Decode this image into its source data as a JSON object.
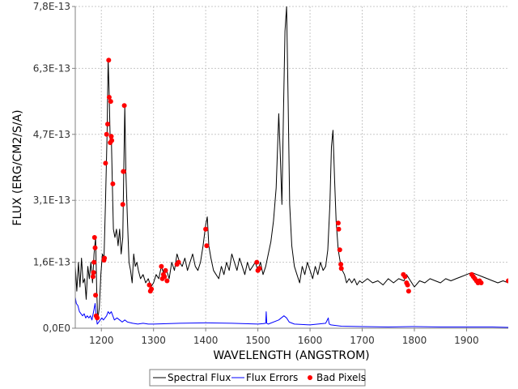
{
  "chart_data": {
    "type": "line",
    "xlabel": "WAVELENGTH (ANGSTROM)",
    "ylabel": "FLUX (ERG/CM2/S/A)",
    "xlim": [
      1150,
      1980
    ],
    "ylim": [
      0,
      7.8e-13
    ],
    "x_ticks": [
      1200,
      1300,
      1400,
      1500,
      1600,
      1700,
      1800,
      1900
    ],
    "x_tick_labels": [
      "1200",
      "1300",
      "1400",
      "1500",
      "1600",
      "1700",
      "1800",
      "1900"
    ],
    "y_ticks": [
      0,
      1.6e-13,
      3.1e-13,
      4.7e-13,
      6.3e-13,
      7.8e-13
    ],
    "y_tick_labels": [
      "0,0E0",
      "1,6E-13",
      "3,1E-13",
      "4,7E-13",
      "6,3E-13",
      "7,8E-13"
    ],
    "grid": true,
    "legend_position": "bottom",
    "colors": {
      "flux": "#000000",
      "errors": "#0000ff",
      "bad": "#ff0000",
      "grid": "#c8c8c8"
    },
    "series": [
      {
        "name": "Spectral Flux",
        "style": "line",
        "x": [
          1150,
          1153,
          1156,
          1159,
          1162,
          1165,
          1168,
          1171,
          1174,
          1177,
          1180,
          1183,
          1186,
          1189,
          1191,
          1193,
          1196,
          1199,
          1202,
          1205,
          1208,
          1211,
          1213,
          1215,
          1217,
          1219,
          1221,
          1223,
          1226,
          1229,
          1232,
          1235,
          1238,
          1241,
          1243,
          1245,
          1247,
          1250,
          1253,
          1256,
          1259,
          1262,
          1265,
          1268,
          1271,
          1275,
          1280,
          1285,
          1290,
          1295,
          1300,
          1305,
          1310,
          1315,
          1320,
          1325,
          1330,
          1335,
          1340,
          1345,
          1350,
          1355,
          1360,
          1365,
          1370,
          1375,
          1380,
          1385,
          1390,
          1395,
          1400,
          1403,
          1406,
          1410,
          1415,
          1420,
          1425,
          1430,
          1435,
          1440,
          1445,
          1450,
          1455,
          1460,
          1465,
          1470,
          1475,
          1480,
          1485,
          1490,
          1495,
          1500,
          1505,
          1510,
          1515,
          1520,
          1525,
          1530,
          1535,
          1540,
          1543,
          1546,
          1549,
          1552,
          1555,
          1558,
          1561,
          1565,
          1570,
          1575,
          1580,
          1585,
          1590,
          1595,
          1600,
          1605,
          1610,
          1615,
          1620,
          1625,
          1630,
          1634,
          1638,
          1641,
          1644,
          1647,
          1650,
          1654,
          1658,
          1662,
          1666,
          1670,
          1675,
          1680,
          1685,
          1690,
          1695,
          1700,
          1710,
          1720,
          1730,
          1740,
          1750,
          1760,
          1770,
          1780,
          1785,
          1790,
          1800,
          1810,
          1820,
          1830,
          1840,
          1850,
          1860,
          1870,
          1880,
          1890,
          1900,
          1910,
          1920,
          1930,
          1940,
          1950,
          1960,
          1970,
          1980
        ],
        "y": [
          1.5e-13,
          9e-14,
          1.6e-13,
          1e-13,
          1.7e-13,
          1.1e-13,
          1.2e-13,
          7e-14,
          1.5e-13,
          1.2e-13,
          1.6e-13,
          1.1e-13,
          1.8e-13,
          2.2e-13,
          1e-13,
          2e-14,
          5e-14,
          1.3e-13,
          1.8e-13,
          1.7e-13,
          3.1e-13,
          4.7e-13,
          6.5e-13,
          5.7e-13,
          4.5e-13,
          4.7e-13,
          3.5e-13,
          2.4e-13,
          2.2e-13,
          2.4e-13,
          2e-13,
          2.4e-13,
          1.8e-13,
          2.2e-13,
          3.8e-13,
          5.4e-13,
          3.8e-13,
          2.6e-13,
          1.6e-13,
          1.4e-13,
          1.1e-13,
          1.8e-13,
          1.5e-13,
          1.6e-13,
          1.4e-13,
          1.2e-13,
          1.3e-13,
          1.1e-13,
          1.2e-13,
          1e-13,
          1.1e-13,
          1.3e-13,
          1.2e-13,
          1.5e-13,
          1.3e-13,
          1.4e-13,
          1.2e-13,
          1.6e-13,
          1.4e-13,
          1.8e-13,
          1.6e-13,
          1.5e-13,
          1.7e-13,
          1.4e-13,
          1.6e-13,
          1.8e-13,
          1.5e-13,
          1.4e-13,
          1.6e-13,
          2e-13,
          2.5e-13,
          2.7e-13,
          2e-13,
          1.7e-13,
          1.4e-13,
          1.3e-13,
          1.2e-13,
          1.5e-13,
          1.3e-13,
          1.6e-13,
          1.4e-13,
          1.8e-13,
          1.6e-13,
          1.4e-13,
          1.7e-13,
          1.5e-13,
          1.3e-13,
          1.6e-13,
          1.4e-13,
          1.5e-13,
          1.6e-13,
          1.4e-13,
          1.6e-13,
          1.3e-13,
          1.5e-13,
          1.8e-13,
          2.1e-13,
          2.6e-13,
          3.4e-13,
          5.2e-13,
          4.2e-13,
          3e-13,
          5.2e-13,
          7.2e-13,
          7.8e-13,
          5.5e-13,
          3e-13,
          2e-13,
          1.5e-13,
          1.3e-13,
          1.1e-13,
          1.5e-13,
          1.3e-13,
          1.6e-13,
          1.4e-13,
          1.2e-13,
          1.5e-13,
          1.3e-13,
          1.6e-13,
          1.4e-13,
          1.5e-13,
          1.9e-13,
          3e-13,
          4.4e-13,
          4.8e-13,
          3.6e-13,
          2.6e-13,
          1.9e-13,
          1.6e-13,
          1.4e-13,
          1.3e-13,
          1.1e-13,
          1.2e-13,
          1.1e-13,
          1.2e-13,
          1.05e-13,
          1.15e-13,
          1.1e-13,
          1.2e-13,
          1.1e-13,
          1.15e-13,
          1.05e-13,
          1.2e-13,
          1.1e-13,
          1.2e-13,
          1.15e-13,
          1.3e-13,
          1.2e-13,
          1e-13,
          1.15e-13,
          1.1e-13,
          1.2e-13,
          1.15e-13,
          1.1e-13,
          1.2e-13,
          1.15e-13,
          1.2e-13,
          1.25e-13,
          1.3e-13,
          1.35e-13,
          1.3e-13,
          1.25e-13,
          1.2e-13,
          1.15e-13,
          1.1e-13,
          1.15e-13,
          1.1e-13
        ]
      },
      {
        "name": "Flux Errors",
        "style": "line",
        "x": [
          1150,
          1152,
          1155,
          1158,
          1161,
          1164,
          1167,
          1170,
          1173,
          1176,
          1179,
          1182,
          1185,
          1188,
          1190,
          1192,
          1195,
          1198,
          1201,
          1204,
          1207,
          1210,
          1213,
          1216,
          1219,
          1222,
          1225,
          1230,
          1235,
          1240,
          1245,
          1250,
          1260,
          1270,
          1280,
          1290,
          1300,
          1350,
          1400,
          1450,
          1500,
          1510,
          1515,
          1516,
          1517,
          1520,
          1540,
          1550,
          1555,
          1560,
          1570,
          1600,
          1630,
          1635,
          1636,
          1637,
          1640,
          1660,
          1700,
          1750,
          1800,
          1850,
          1900,
          1950,
          1980
        ],
        "y": [
          7.5e-14,
          6e-14,
          5.5e-14,
          4e-14,
          3.5e-14,
          3e-14,
          3.5e-14,
          2.5e-14,
          3e-14,
          2.5e-14,
          3e-14,
          2e-14,
          4e-14,
          6e-14,
          3e-14,
          1e-14,
          1.5e-14,
          2e-14,
          2.5e-14,
          2e-14,
          2.5e-14,
          3e-14,
          4e-14,
          3.5e-14,
          4e-14,
          3e-14,
          2e-14,
          2.5e-14,
          2e-14,
          1.5e-14,
          2e-14,
          1.5e-14,
          1.2e-14,
          1e-14,
          1.2e-14,
          1e-14,
          1e-14,
          1.2e-14,
          1.3e-14,
          1.2e-14,
          1e-14,
          1.1e-14,
          1.2e-14,
          4e-14,
          1.2e-14,
          1e-14,
          2e-14,
          3e-14,
          2.5e-14,
          1.5e-14,
          1e-14,
          8e-15,
          1.2e-14,
          2.5e-14,
          1.5e-14,
          1e-14,
          8e-15,
          5e-15,
          4e-15,
          3e-15,
          4e-15,
          3e-15,
          3e-15,
          3e-15,
          2e-15
        ]
      },
      {
        "name": "Bad Pixels",
        "style": "points",
        "x": [
          1184,
          1185,
          1186,
          1187,
          1188,
          1189,
          1190,
          1192,
          1205,
          1206,
          1208,
          1210,
          1212,
          1214,
          1215,
          1217,
          1218,
          1219,
          1220,
          1222,
          1241,
          1242,
          1243,
          1244,
          1292,
          1294,
          1296,
          1315,
          1317,
          1319,
          1321,
          1323,
          1326,
          1345,
          1348,
          1400,
          1402,
          1498,
          1500,
          1503,
          1654,
          1655,
          1657,
          1659,
          1660,
          1779,
          1782,
          1785,
          1787,
          1789,
          1910,
          1913,
          1916,
          1919,
          1922,
          1925,
          1928,
          1980
        ],
        "y": [
          1.25e-13,
          1.35e-13,
          1.6e-13,
          2.2e-13,
          1.95e-13,
          8e-14,
          3e-14,
          2.5e-14,
          1.65e-13,
          1.7e-13,
          4e-13,
          4.7e-13,
          4.95e-13,
          6.5e-13,
          5.6e-13,
          4.5e-13,
          5.5e-13,
          4.65e-13,
          4.55e-13,
          3.5e-13,
          3e-13,
          3.8e-13,
          3.8e-13,
          5.4e-13,
          1.05e-13,
          9e-14,
          9.5e-14,
          1.5e-13,
          1.2e-13,
          1.3e-13,
          1.25e-13,
          1.4e-13,
          1.15e-13,
          1.55e-13,
          1.6e-13,
          2.4e-13,
          2e-13,
          1.6e-13,
          1.4e-13,
          1.45e-13,
          2.55e-13,
          2.4e-13,
          1.9e-13,
          1.55e-13,
          1.45e-13,
          1.3e-13,
          1.25e-13,
          1.1e-13,
          1.05e-13,
          9e-14,
          1.3e-13,
          1.25e-13,
          1.2e-13,
          1.15e-13,
          1.1e-13,
          1.15e-13,
          1.1e-13,
          1.15e-13
        ]
      }
    ]
  }
}
